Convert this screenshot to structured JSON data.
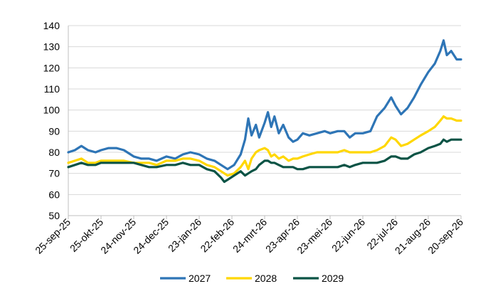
{
  "chart_data": {
    "type": "line",
    "title": "",
    "xlabel": "",
    "ylabel": "",
    "ylim": [
      50,
      140
    ],
    "yticks": [
      50,
      60,
      70,
      80,
      90,
      100,
      110,
      120,
      130,
      140
    ],
    "xlim": [
      "2025-09-25",
      "2026-09-20"
    ],
    "x_ticks": [
      {
        "date": "2025-09-25",
        "label": "25-sep-25"
      },
      {
        "date": "2025-10-25",
        "label": "25-okt-25"
      },
      {
        "date": "2025-11-24",
        "label": "24-nov-25"
      },
      {
        "date": "2025-12-24",
        "label": "24-dec-25"
      },
      {
        "date": "2026-01-23",
        "label": "23-jan-26"
      },
      {
        "date": "2026-02-22",
        "label": "22-feb-26"
      },
      {
        "date": "2026-03-24",
        "label": "24-mrt-26"
      },
      {
        "date": "2026-04-23",
        "label": "23-apr-26"
      },
      {
        "date": "2026-05-23",
        "label": "23-mei-26"
      },
      {
        "date": "2026-06-22",
        "label": "22-jun-26"
      },
      {
        "date": "2026-07-22",
        "label": "22-jul-26"
      },
      {
        "date": "2026-08-21",
        "label": "21-aug-26"
      },
      {
        "date": "2026-09-20",
        "label": "20-sep-26"
      }
    ],
    "grid": true,
    "legend_position": "bottom",
    "series": [
      {
        "name": "2027",
        "color": "#2e75b6",
        "points": [
          [
            "2025-09-25",
            80
          ],
          [
            "2025-10-01",
            81
          ],
          [
            "2025-10-07",
            83
          ],
          [
            "2025-10-13",
            81
          ],
          [
            "2025-10-20",
            80
          ],
          [
            "2025-10-25",
            81
          ],
          [
            "2025-11-01",
            82
          ],
          [
            "2025-11-08",
            82
          ],
          [
            "2025-11-15",
            81
          ],
          [
            "2025-11-24",
            78
          ],
          [
            "2025-12-01",
            77
          ],
          [
            "2025-12-08",
            77
          ],
          [
            "2025-12-15",
            76
          ],
          [
            "2025-12-24",
            78
          ],
          [
            "2026-01-01",
            77
          ],
          [
            "2026-01-08",
            79
          ],
          [
            "2026-01-15",
            80
          ],
          [
            "2026-01-23",
            79
          ],
          [
            "2026-01-30",
            77
          ],
          [
            "2026-02-06",
            76
          ],
          [
            "2026-02-12",
            74
          ],
          [
            "2026-02-18",
            72
          ],
          [
            "2026-02-24",
            74
          ],
          [
            "2026-03-02",
            79
          ],
          [
            "2026-03-06",
            86
          ],
          [
            "2026-03-09",
            96
          ],
          [
            "2026-03-12",
            88
          ],
          [
            "2026-03-16",
            93
          ],
          [
            "2026-03-19",
            87
          ],
          [
            "2026-03-24",
            94
          ],
          [
            "2026-03-27",
            99
          ],
          [
            "2026-03-30",
            92
          ],
          [
            "2026-04-02",
            97
          ],
          [
            "2026-04-06",
            89
          ],
          [
            "2026-04-10",
            93
          ],
          [
            "2026-04-15",
            87
          ],
          [
            "2026-04-19",
            85
          ],
          [
            "2026-04-23",
            86
          ],
          [
            "2026-04-28",
            89
          ],
          [
            "2026-05-04",
            88
          ],
          [
            "2026-05-11",
            89
          ],
          [
            "2026-05-18",
            90
          ],
          [
            "2026-05-23",
            89
          ],
          [
            "2026-05-30",
            90
          ],
          [
            "2026-06-05",
            90
          ],
          [
            "2026-06-10",
            87
          ],
          [
            "2026-06-15",
            89
          ],
          [
            "2026-06-22",
            89
          ],
          [
            "2026-06-29",
            90
          ],
          [
            "2026-07-05",
            97
          ],
          [
            "2026-07-12",
            101
          ],
          [
            "2026-07-18",
            106
          ],
          [
            "2026-07-22",
            102
          ],
          [
            "2026-07-27",
            98
          ],
          [
            "2026-08-02",
            101
          ],
          [
            "2026-08-08",
            106
          ],
          [
            "2026-08-14",
            112
          ],
          [
            "2026-08-21",
            118
          ],
          [
            "2026-08-27",
            122
          ],
          [
            "2026-09-01",
            128
          ],
          [
            "2026-09-04",
            133
          ],
          [
            "2026-09-07",
            126
          ],
          [
            "2026-09-11",
            128
          ],
          [
            "2026-09-16",
            124
          ],
          [
            "2026-09-20",
            124
          ]
        ]
      },
      {
        "name": "2028",
        "color": "#ffd700",
        "points": [
          [
            "2025-09-25",
            75
          ],
          [
            "2025-10-01",
            76
          ],
          [
            "2025-10-07",
            77
          ],
          [
            "2025-10-13",
            75
          ],
          [
            "2025-10-20",
            75
          ],
          [
            "2025-10-25",
            76
          ],
          [
            "2025-11-01",
            76
          ],
          [
            "2025-11-08",
            76
          ],
          [
            "2025-11-15",
            76
          ],
          [
            "2025-11-24",
            75
          ],
          [
            "2025-12-01",
            75
          ],
          [
            "2025-12-08",
            75
          ],
          [
            "2025-12-15",
            74
          ],
          [
            "2025-12-24",
            76
          ],
          [
            "2026-01-01",
            76
          ],
          [
            "2026-01-08",
            77
          ],
          [
            "2026-01-15",
            77
          ],
          [
            "2026-01-23",
            76
          ],
          [
            "2026-01-30",
            74
          ],
          [
            "2026-02-06",
            73
          ],
          [
            "2026-02-12",
            71
          ],
          [
            "2026-02-18",
            69
          ],
          [
            "2026-02-24",
            70
          ],
          [
            "2026-03-02",
            73
          ],
          [
            "2026-03-06",
            76
          ],
          [
            "2026-03-09",
            72
          ],
          [
            "2026-03-12",
            77
          ],
          [
            "2026-03-16",
            80
          ],
          [
            "2026-03-19",
            81
          ],
          [
            "2026-03-24",
            82
          ],
          [
            "2026-03-27",
            81
          ],
          [
            "2026-03-30",
            78
          ],
          [
            "2026-04-02",
            79
          ],
          [
            "2026-04-06",
            77
          ],
          [
            "2026-04-10",
            78
          ],
          [
            "2026-04-15",
            76
          ],
          [
            "2026-04-19",
            77
          ],
          [
            "2026-04-23",
            77
          ],
          [
            "2026-04-28",
            78
          ],
          [
            "2026-05-04",
            79
          ],
          [
            "2026-05-11",
            80
          ],
          [
            "2026-05-18",
            80
          ],
          [
            "2026-05-23",
            80
          ],
          [
            "2026-05-30",
            80
          ],
          [
            "2026-06-05",
            81
          ],
          [
            "2026-06-10",
            80
          ],
          [
            "2026-06-15",
            80
          ],
          [
            "2026-06-22",
            80
          ],
          [
            "2026-06-29",
            80
          ],
          [
            "2026-07-05",
            81
          ],
          [
            "2026-07-12",
            83
          ],
          [
            "2026-07-18",
            87
          ],
          [
            "2026-07-22",
            86
          ],
          [
            "2026-07-27",
            83
          ],
          [
            "2026-08-02",
            84
          ],
          [
            "2026-08-08",
            86
          ],
          [
            "2026-08-14",
            88
          ],
          [
            "2026-08-21",
            90
          ],
          [
            "2026-08-27",
            92
          ],
          [
            "2026-09-01",
            95
          ],
          [
            "2026-09-04",
            97
          ],
          [
            "2026-09-07",
            96
          ],
          [
            "2026-09-11",
            96
          ],
          [
            "2026-09-16",
            95
          ],
          [
            "2026-09-20",
            95
          ]
        ]
      },
      {
        "name": "2029",
        "color": "#0b5345",
        "points": [
          [
            "2025-09-25",
            73
          ],
          [
            "2025-10-01",
            74
          ],
          [
            "2025-10-07",
            75
          ],
          [
            "2025-10-13",
            74
          ],
          [
            "2025-10-20",
            74
          ],
          [
            "2025-10-25",
            75
          ],
          [
            "2025-11-01",
            75
          ],
          [
            "2025-11-08",
            75
          ],
          [
            "2025-11-15",
            75
          ],
          [
            "2025-11-24",
            75
          ],
          [
            "2025-12-01",
            74
          ],
          [
            "2025-12-08",
            73
          ],
          [
            "2025-12-15",
            73
          ],
          [
            "2025-12-24",
            74
          ],
          [
            "2026-01-01",
            74
          ],
          [
            "2026-01-08",
            75
          ],
          [
            "2026-01-15",
            74
          ],
          [
            "2026-01-23",
            74
          ],
          [
            "2026-01-30",
            72
          ],
          [
            "2026-02-06",
            71
          ],
          [
            "2026-02-12",
            68
          ],
          [
            "2026-02-15",
            66
          ],
          [
            "2026-02-18",
            67
          ],
          [
            "2026-02-24",
            69
          ],
          [
            "2026-03-02",
            71
          ],
          [
            "2026-03-06",
            69
          ],
          [
            "2026-03-09",
            70
          ],
          [
            "2026-03-12",
            71
          ],
          [
            "2026-03-16",
            72
          ],
          [
            "2026-03-19",
            74
          ],
          [
            "2026-03-24",
            76
          ],
          [
            "2026-03-27",
            76
          ],
          [
            "2026-03-30",
            75
          ],
          [
            "2026-04-02",
            75
          ],
          [
            "2026-04-06",
            74
          ],
          [
            "2026-04-10",
            73
          ],
          [
            "2026-04-15",
            73
          ],
          [
            "2026-04-19",
            73
          ],
          [
            "2026-04-23",
            72
          ],
          [
            "2026-04-28",
            72
          ],
          [
            "2026-05-04",
            73
          ],
          [
            "2026-05-11",
            73
          ],
          [
            "2026-05-18",
            73
          ],
          [
            "2026-05-23",
            73
          ],
          [
            "2026-05-30",
            73
          ],
          [
            "2026-06-05",
            74
          ],
          [
            "2026-06-10",
            73
          ],
          [
            "2026-06-15",
            74
          ],
          [
            "2026-06-22",
            75
          ],
          [
            "2026-06-29",
            75
          ],
          [
            "2026-07-05",
            75
          ],
          [
            "2026-07-12",
            76
          ],
          [
            "2026-07-18",
            78
          ],
          [
            "2026-07-22",
            78
          ],
          [
            "2026-07-27",
            77
          ],
          [
            "2026-08-02",
            77
          ],
          [
            "2026-08-08",
            79
          ],
          [
            "2026-08-14",
            80
          ],
          [
            "2026-08-21",
            82
          ],
          [
            "2026-08-27",
            83
          ],
          [
            "2026-09-01",
            84
          ],
          [
            "2026-09-04",
            86
          ],
          [
            "2026-09-07",
            85
          ],
          [
            "2026-09-11",
            86
          ],
          [
            "2026-09-16",
            86
          ],
          [
            "2026-09-20",
            86
          ]
        ]
      }
    ]
  }
}
